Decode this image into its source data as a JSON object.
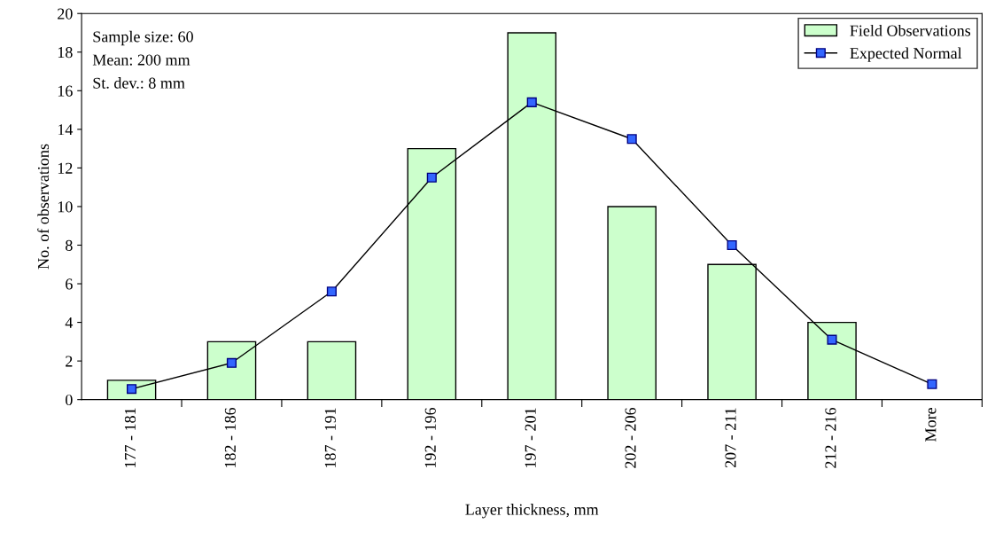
{
  "chart_data": {
    "type": "bar",
    "xlabel": "Layer thickness, mm",
    "ylabel": "No. of observations",
    "categories": [
      "177 - 181",
      "182 - 186",
      "187 - 191",
      "192 - 196",
      "197 - 201",
      "202 - 206",
      "207 - 211",
      "212 - 216",
      "More"
    ],
    "series": [
      {
        "name": "Field Observations",
        "color": "#ccffcc",
        "values": [
          1,
          3,
          3,
          13,
          19,
          10,
          7,
          4,
          null
        ]
      },
      {
        "name": "Expected Normal",
        "type": "line",
        "color": "#000000",
        "marker": "square",
        "values": [
          0.55,
          1.9,
          5.6,
          11.5,
          15.4,
          13.5,
          8.0,
          3.1,
          0.8
        ]
      }
    ],
    "ylim": [
      0,
      20
    ],
    "yticks": [
      0,
      2,
      4,
      6,
      8,
      10,
      12,
      14,
      16,
      18,
      20
    ],
    "grid": false,
    "legend": "top right",
    "annotations": [
      "Sample size: 60",
      "Mean: 200 mm",
      "St. dev.: 8 mm"
    ]
  }
}
